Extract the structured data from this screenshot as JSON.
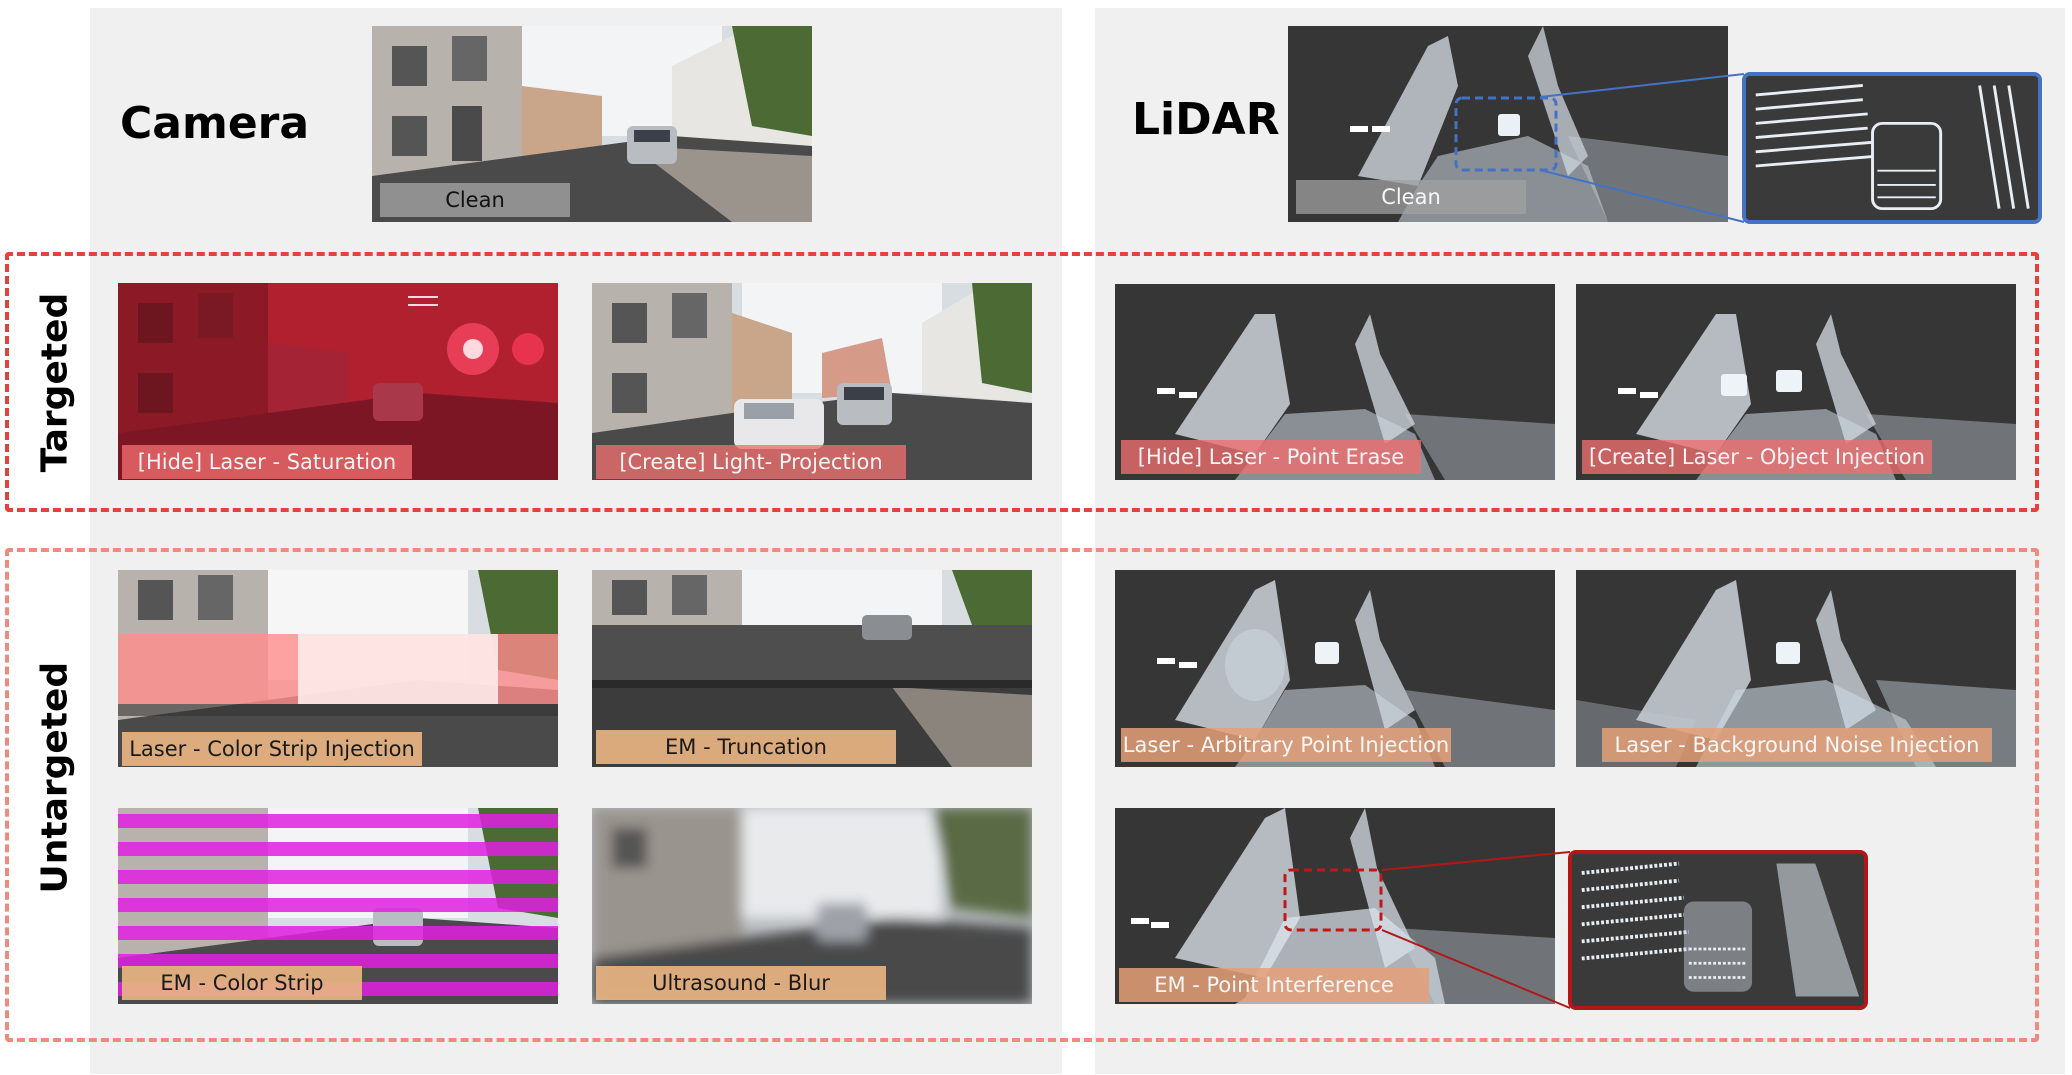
{
  "headers": {
    "camera": "Camera",
    "lidar": "LiDAR"
  },
  "rows": {
    "targeted": "Targeted",
    "untargeted": "Untargeted"
  },
  "camera": {
    "clean": "Clean",
    "hide_saturation": "[Hide] Laser - Saturation",
    "create_projection": "[Create] Light- Projection",
    "color_strip_injection": "Laser - Color Strip Injection",
    "truncation": "EM - Truncation",
    "color_strip": "EM - Color Strip",
    "blur": "Ultrasound - Blur"
  },
  "lidar": {
    "clean": "Clean",
    "point_erase": "[Hide] Laser - Point Erase",
    "object_injection": "[Create] Laser - Object Injection",
    "arbitrary_point": "Laser - Arbitrary Point Injection",
    "background_noise": "Laser - Background Noise Injection",
    "point_interference": "EM - Point Interference"
  },
  "colors": {
    "panel": "#f0f0f0",
    "targeted_dash": "#e8403a",
    "untargeted_dash": "#f08a7e",
    "zoom_blue": "#4472c4",
    "zoom_red": "#b01818",
    "lidar_bg": "#363636"
  }
}
